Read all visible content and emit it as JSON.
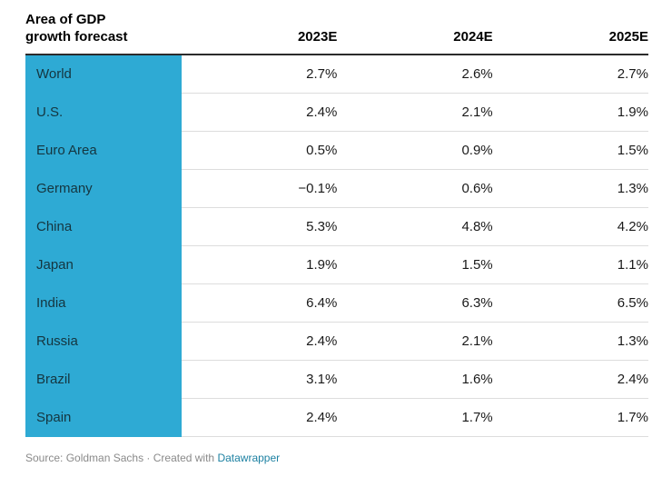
{
  "header": {
    "title_line1": "Area of GDP",
    "title_line2": "growth forecast"
  },
  "footer": {
    "source_text": "Source: Goldman Sachs · Created with ",
    "link_label": "Datawrapper"
  },
  "colors": {
    "label_column_bg": "#2eaad4",
    "header_border": "#2b2b2b",
    "row_divider": "#dddddd",
    "link": "#1d81a2"
  },
  "chart_data": {
    "type": "table",
    "title": "Area of GDP growth forecast",
    "columns": [
      "2023E",
      "2024E",
      "2025E"
    ],
    "rows": [
      {
        "label": "World",
        "values": [
          "2.7%",
          "2.6%",
          "2.7%"
        ]
      },
      {
        "label": "U.S.",
        "values": [
          "2.4%",
          "2.1%",
          "1.9%"
        ]
      },
      {
        "label": "Euro Area",
        "values": [
          "0.5%",
          "0.9%",
          "1.5%"
        ]
      },
      {
        "label": "Germany",
        "values": [
          "−0.1%",
          "0.6%",
          "1.3%"
        ]
      },
      {
        "label": "China",
        "values": [
          "5.3%",
          "4.8%",
          "4.2%"
        ]
      },
      {
        "label": "Japan",
        "values": [
          "1.9%",
          "1.5%",
          "1.1%"
        ]
      },
      {
        "label": "India",
        "values": [
          "6.4%",
          "6.3%",
          "6.5%"
        ]
      },
      {
        "label": "Russia",
        "values": [
          "2.4%",
          "2.1%",
          "1.3%"
        ]
      },
      {
        "label": "Brazil",
        "values": [
          "3.1%",
          "1.6%",
          "2.4%"
        ]
      },
      {
        "label": "Spain",
        "values": [
          "2.4%",
          "1.7%",
          "1.7%"
        ]
      }
    ]
  }
}
